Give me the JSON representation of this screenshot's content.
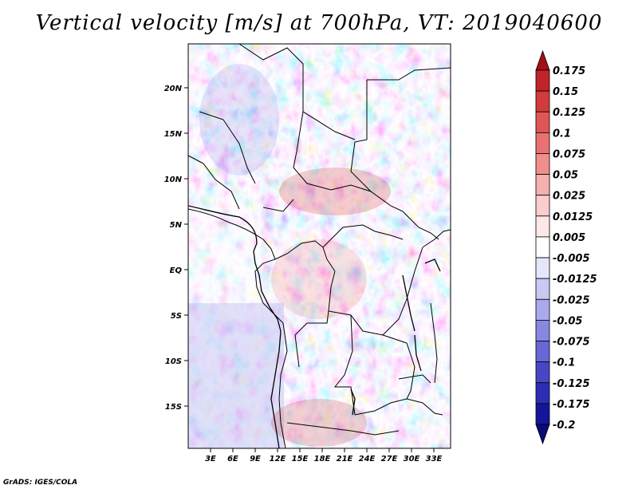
{
  "title": "Vertical velocity [m/s] at 700hPa, VT: 2019040600",
  "credit": "GrADS: IGES/COLA",
  "map": {
    "lat_labels": [
      "20N",
      "15N",
      "10N",
      "5N",
      "EQ",
      "5S",
      "10S",
      "15S"
    ],
    "lon_labels": [
      "3E",
      "6E",
      "9E",
      "12E",
      "15E",
      "18E",
      "21E",
      "24E",
      "27E",
      "30E",
      "33E"
    ]
  },
  "colorbar": {
    "levels": [
      "0.175",
      "0.15",
      "0.125",
      "0.1",
      "0.075",
      "0.05",
      "0.025",
      "0.0125",
      "0.005",
      "-0.005",
      "-0.0125",
      "-0.025",
      "-0.05",
      "-0.075",
      "-0.1",
      "-0.125",
      "-0.175",
      "-0.2"
    ],
    "colors": [
      "#a50f15",
      "#c0242a",
      "#d23b3b",
      "#e05656",
      "#e87272",
      "#f08e8e",
      "#f7b0b0",
      "#fbcdcd",
      "#fde8e8",
      "#ffffff",
      "#e6e6fb",
      "#c9c9f3",
      "#a9a9ec",
      "#8888e2",
      "#6767d6",
      "#4747c6",
      "#2d2db3",
      "#15159a",
      "#0a0a78"
    ]
  }
}
